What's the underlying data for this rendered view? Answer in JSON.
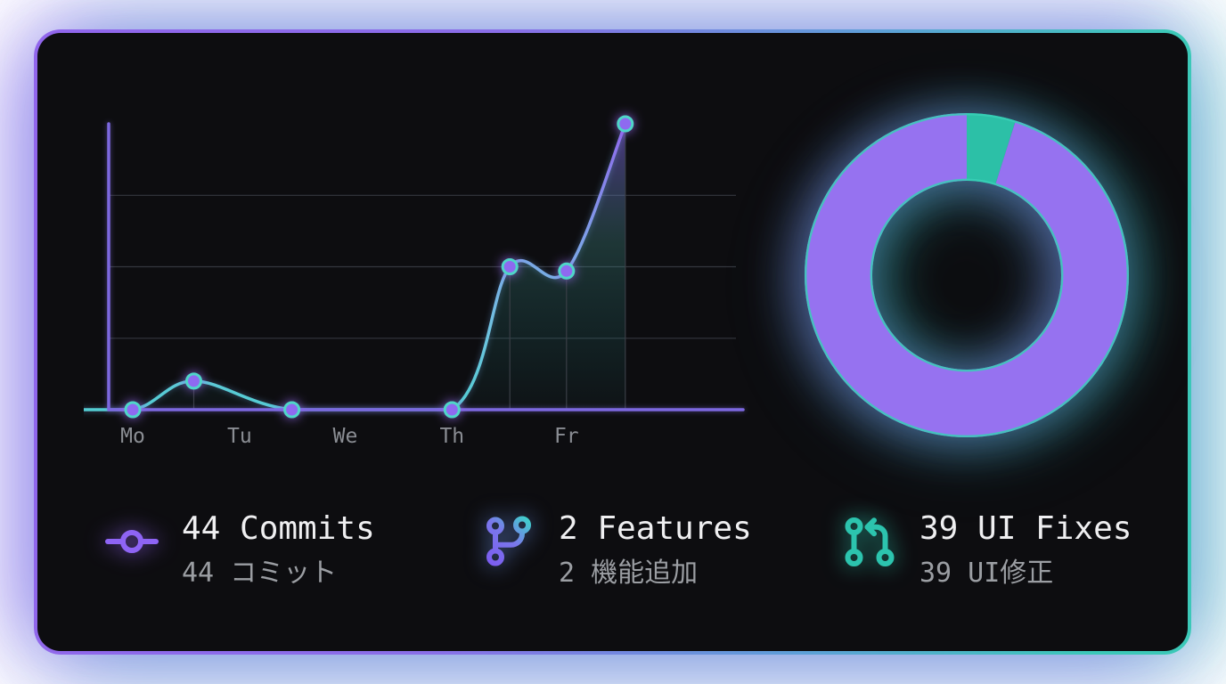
{
  "colors": {
    "accent_purple": "#8e64f4",
    "accent_teal": "#2cc4ae",
    "card_background": "#0d0d10",
    "axis": "#7b68e0",
    "grid": "#34373e",
    "drop_line": "#3a3e46",
    "tick_label": "#8a8d93",
    "dot_fill": "#8e6af0",
    "dot_ring": "#4fd6c9",
    "text_primary": "#efeff1",
    "text_secondary": "#9b9ea3",
    "donut_purple": "#9672f0",
    "donut_teal": "#2cc0a7",
    "donut_rim": "#38cfb6"
  },
  "chart_data": [
    {
      "type": "area",
      "title": "",
      "xlabel": "",
      "ylabel": "",
      "x_ticks": [
        {
          "label": "Mo",
          "x": 1.0
        },
        {
          "label": "Tu",
          "x": 1.98
        },
        {
          "label": "We",
          "x": 2.95
        },
        {
          "label": "Th",
          "x": 3.93
        },
        {
          "label": "Fr",
          "x": 4.98
        }
      ],
      "points": [
        {
          "x": 0.14,
          "y": 0
        },
        {
          "x": 1.0,
          "y": 0
        },
        {
          "x": 1.56,
          "y": 2
        },
        {
          "x": 2.46,
          "y": 0
        },
        {
          "x": 3.93,
          "y": 0
        },
        {
          "x": 4.46,
          "y": 10
        },
        {
          "x": 4.98,
          "y": 9.7
        },
        {
          "x": 5.52,
          "y": 20
        }
      ],
      "area_segments": [
        [
          1,
          3
        ],
        [
          4,
          7
        ]
      ],
      "ylim": [
        0,
        20
      ],
      "gridlines_y": [
        5,
        10,
        15
      ],
      "grid": "horizontal-only",
      "legend": "none",
      "y_tick_labels": "none"
    },
    {
      "type": "donut",
      "title": "",
      "start_angle_deg": -90,
      "direction": "clockwise",
      "slices": [
        {
          "label": "Features",
          "value": 2,
          "color": "#2cc0a7"
        },
        {
          "label": "UI Fixes",
          "value": 39,
          "color": "#9672f0"
        }
      ],
      "legend": "none"
    }
  ],
  "stats": [
    {
      "id": "commits",
      "icon": "git-commit-icon",
      "label_en": "44 Commits",
      "label_ja": "44 コミット"
    },
    {
      "id": "features",
      "icon": "git-branch-icon",
      "label_en": "2 Features",
      "label_ja": "2 機能追加"
    },
    {
      "id": "ui_fixes",
      "icon": "git-pull-request-icon",
      "label_en": "39 UI Fixes",
      "label_ja": "39 UI修正"
    }
  ]
}
